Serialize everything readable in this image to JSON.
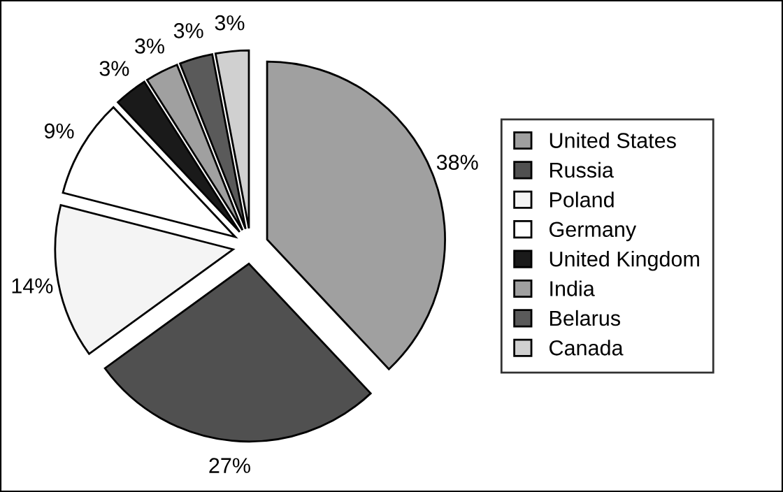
{
  "chart_data": {
    "type": "pie",
    "categories": [
      "United States",
      "Russia",
      "Poland",
      "Germany",
      "United Kingdom",
      "India",
      "Belarus",
      "Canada"
    ],
    "values": [
      38,
      27,
      14,
      9,
      3,
      3,
      3,
      3
    ],
    "value_labels": [
      "38%",
      "27%",
      "14%",
      "9%",
      "3%",
      "3%",
      "3%",
      "3%"
    ],
    "colors": [
      "#a0a0a0",
      "#505050",
      "#f4f4f4",
      "#ffffff",
      "#1a1a1a",
      "#a0a0a0",
      "#5a5a5a",
      "#d0d0d0"
    ],
    "legend": "right"
  }
}
